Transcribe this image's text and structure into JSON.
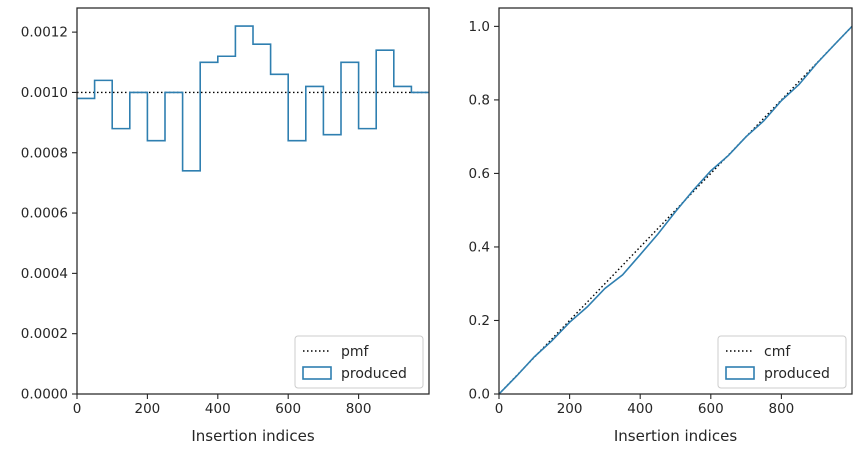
{
  "chart_data": [
    {
      "type": "histogram-step",
      "xlabel": "Insertion indices",
      "ylabel": "",
      "xlim": [
        0,
        1000
      ],
      "ylim": [
        0,
        0.00128
      ],
      "xticks": [
        0,
        200,
        400,
        600,
        800
      ],
      "xtick_labels": [
        "0",
        "200",
        "400",
        "600",
        "800"
      ],
      "yticks": [
        0,
        0.0002,
        0.0004,
        0.0006,
        0.0008,
        0.001,
        0.0012
      ],
      "ytick_labels": [
        "0.0000",
        "0.0002",
        "0.0004",
        "0.0006",
        "0.0008",
        "0.0010",
        "0.0012"
      ],
      "legend_position": "lower-right",
      "series": [
        {
          "name": "pmf",
          "style": "dotted",
          "color": "#000000",
          "x": [
            0,
            1000
          ],
          "y": [
            0.001,
            0.001
          ]
        },
        {
          "name": "produced",
          "style": "step",
          "color": "#2f7fb0",
          "bin_edges": [
            0,
            50,
            100,
            150,
            200,
            250,
            300,
            350,
            400,
            450,
            500,
            550,
            600,
            650,
            700,
            750,
            800,
            850,
            900,
            950,
            1000
          ],
          "values": [
            0.00098,
            0.00104,
            0.00088,
            0.001,
            0.00084,
            0.001,
            0.00074,
            0.0011,
            0.00112,
            0.00122,
            0.00116,
            0.00106,
            0.00084,
            0.00102,
            0.00086,
            0.0011,
            0.00088,
            0.00114,
            0.00102,
            0.001
          ]
        }
      ]
    },
    {
      "type": "line",
      "xlabel": "Insertion indices",
      "ylabel": "",
      "xlim": [
        0,
        1000
      ],
      "ylim": [
        0,
        1.05
      ],
      "xticks": [
        0,
        200,
        400,
        600,
        800
      ],
      "xtick_labels": [
        "0",
        "200",
        "400",
        "600",
        "800"
      ],
      "yticks": [
        0,
        0.2,
        0.4,
        0.6,
        0.8,
        1.0
      ],
      "ytick_labels": [
        "0.0",
        "0.2",
        "0.4",
        "0.6",
        "0.8",
        "1.0"
      ],
      "legend_position": "lower-right",
      "series": [
        {
          "name": "cmf",
          "style": "dotted",
          "color": "#000000",
          "x": [
            0,
            1000
          ],
          "y": [
            0,
            1
          ]
        },
        {
          "name": "produced",
          "style": "line",
          "color": "#2f7fb0",
          "x": [
            0,
            50,
            100,
            150,
            200,
            250,
            300,
            350,
            400,
            450,
            500,
            550,
            600,
            650,
            700,
            750,
            800,
            850,
            900,
            950,
            1000
          ],
          "y": [
            0,
            0.049,
            0.101,
            0.145,
            0.195,
            0.237,
            0.287,
            0.324,
            0.379,
            0.435,
            0.496,
            0.554,
            0.607,
            0.649,
            0.7,
            0.743,
            0.798,
            0.842,
            0.899,
            0.95,
            1.0
          ]
        }
      ]
    }
  ]
}
